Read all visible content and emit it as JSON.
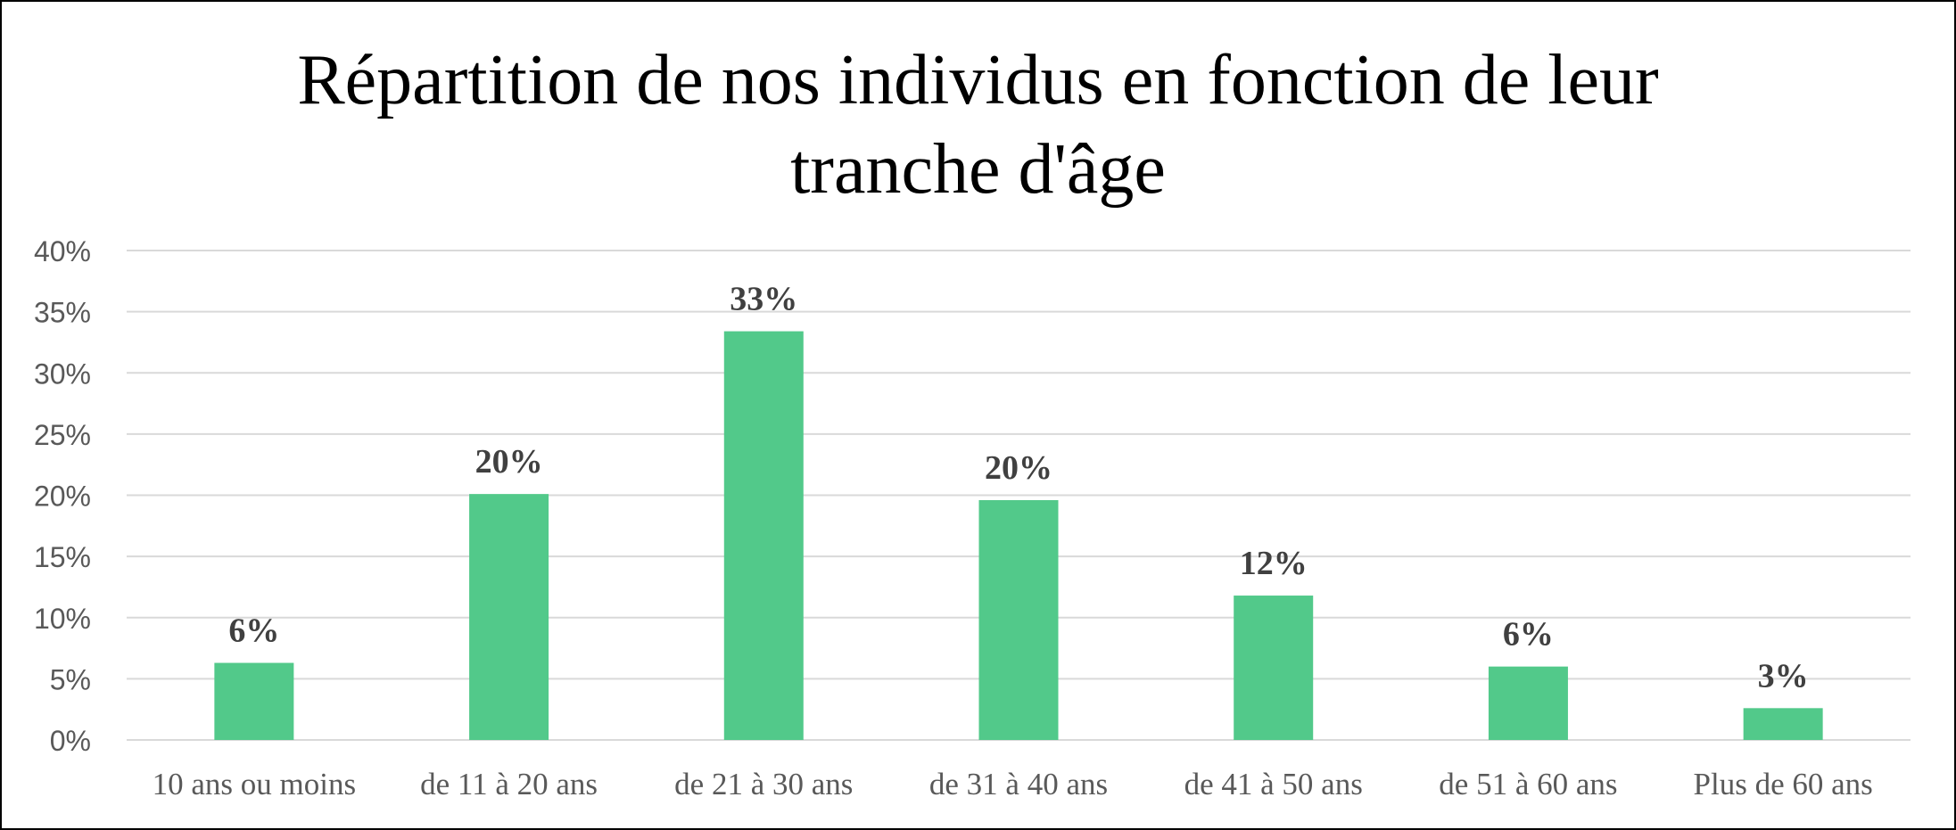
{
  "chart_data": {
    "type": "bar",
    "title_lines": [
      "Répartition de nos individus en fonction de leur",
      "tranche d'âge"
    ],
    "categories": [
      "10 ans ou moins",
      "de 11 à 20 ans",
      "de 21 à 30 ans",
      "de 31 à 40 ans",
      "de 41 à 50 ans",
      "de 51 à 60 ans",
      "Plus de 60 ans"
    ],
    "values": [
      0.063,
      0.201,
      0.334,
      0.196,
      0.118,
      0.06,
      0.026
    ],
    "data_labels": [
      "6%",
      "20%",
      "33%",
      "20%",
      "12%",
      "6%",
      "3%"
    ],
    "y_ticks": [
      "0%",
      "5%",
      "10%",
      "15%",
      "20%",
      "25%",
      "30%",
      "35%",
      "40%"
    ],
    "ylim": [
      0,
      0.4
    ],
    "xlabel": "",
    "ylabel": "",
    "grid": true,
    "legend": "none",
    "colors": {
      "bar": "#52C98A",
      "grid": "#D9D9D9",
      "tick_text": "#595959",
      "label_text": "#404040"
    }
  }
}
